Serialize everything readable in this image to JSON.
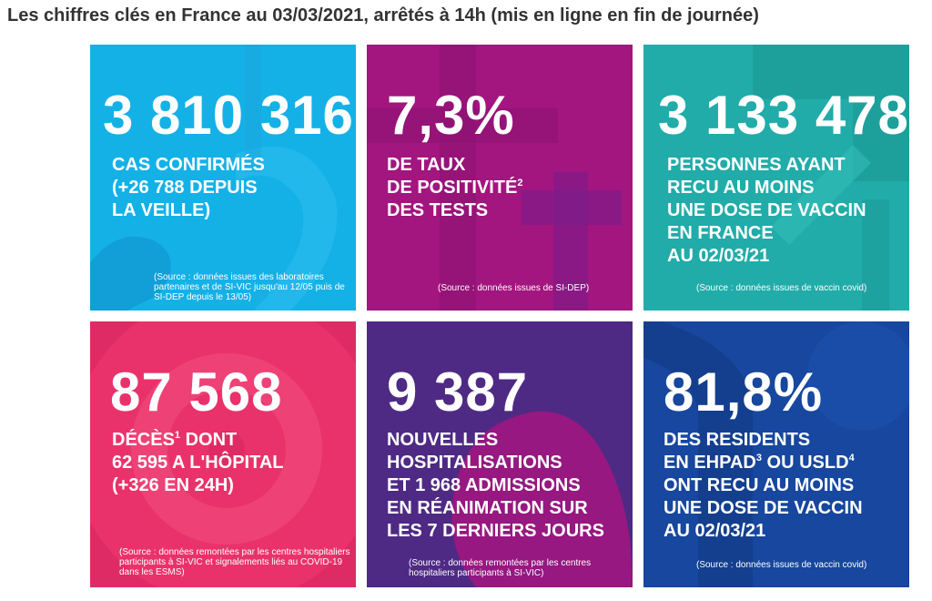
{
  "page": {
    "title": "Les chiffres clés en France au 03/03/2021, arrêtés à 14h (mis en ligne en fin de journée)"
  },
  "colors": {
    "tile_cases": "#14b1e7",
    "tile_positivity": "#a3157f",
    "tile_vaccine": "#21aca9",
    "tile_deaths": "#e9326b",
    "tile_hospitalizations": "#4e2a84",
    "tile_ehpad": "#17479e"
  },
  "tiles": {
    "cases": {
      "value": "3 810 316",
      "lines": [
        "CAS CONFIRMÉS",
        "(+26 788 DEPUIS",
        "LA VEILLE)"
      ],
      "source": "(Source : données issues des laboratoires partenaires et de SI-VIC jusqu'au 12/05 puis de SI-DEP depuis le 13/05)"
    },
    "positivity": {
      "value": "7,3%",
      "line1": "DE TAUX",
      "line2": "DE POSITIVITÉ",
      "line2_sup": "2",
      "line3": "DES TESTS",
      "source": "(Source : données issues de SI-DEP)"
    },
    "vaccine": {
      "value": "3 133 478",
      "lines": [
        "PERSONNES AYANT",
        "RECU AU MOINS",
        "UNE DOSE DE VACCIN",
        "EN FRANCE",
        "AU 02/03/21"
      ],
      "source": "(Source : données issues de vaccin covid)"
    },
    "deaths": {
      "value": "87 568",
      "line1": "DÉCÈS",
      "line1_sup": "1",
      "line1_rest": " DONT",
      "line2": "62 595 A L'HÔPITAL",
      "line3": "(+326 EN 24H)",
      "source": "(Source : données remontées par les centres hospitaliers participants à SI-VIC et signalements liés au COVID-19 dans les ESMS)"
    },
    "hospitalizations": {
      "value": "9 387",
      "lines": [
        "NOUVELLES",
        "HOSPITALISATIONS",
        "ET 1 968 ADMISSIONS",
        "EN RÉANIMATION SUR",
        "LES 7 DERNIERS JOURS"
      ],
      "source": "(Source : données remontées par les centres hospitaliers participants à SI-VIC)"
    },
    "ehpad": {
      "value": "81,8%",
      "line1": "DES RESIDENTS",
      "line2_a": "EN EHPAD",
      "line2_sup1": "3",
      "line2_b": " OU USLD",
      "line2_sup2": "4",
      "line3": "ONT RECU AU MOINS",
      "line4": "UNE DOSE DE VACCIN",
      "line5": "AU 02/03/21",
      "source": "(Source : données issues de vaccin covid)"
    }
  }
}
